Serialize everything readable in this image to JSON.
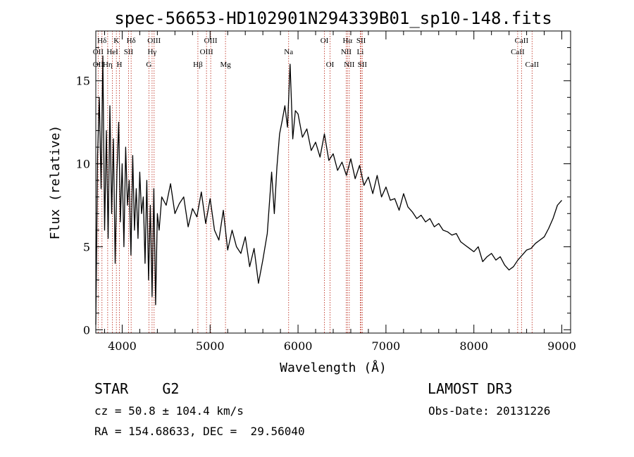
{
  "chart_data": {
    "type": "line",
    "title": "spec-56653-HD102901N294339B01_sp10-148.fits",
    "xlabel": "Wavelength (Å)",
    "ylabel": "Flux (relative)",
    "xlim": [
      3700,
      9100
    ],
    "ylim": [
      -0.2,
      18.0
    ],
    "x_ticks": [
      4000,
      5000,
      6000,
      7000,
      8000,
      9000
    ],
    "y_ticks": [
      0,
      5,
      10,
      15
    ],
    "series": [
      {
        "name": "spectrum",
        "x": [
          3700,
          3720,
          3740,
          3760,
          3780,
          3800,
          3820,
          3840,
          3860,
          3880,
          3900,
          3920,
          3940,
          3960,
          3980,
          4000,
          4020,
          4040,
          4060,
          4080,
          4100,
          4120,
          4140,
          4160,
          4180,
          4200,
          4220,
          4240,
          4260,
          4280,
          4300,
          4320,
          4340,
          4360,
          4380,
          4400,
          4420,
          4450,
          4500,
          4550,
          4600,
          4650,
          4700,
          4750,
          4800,
          4850,
          4900,
          4950,
          5000,
          5050,
          5100,
          5150,
          5200,
          5250,
          5300,
          5350,
          5400,
          5450,
          5500,
          5550,
          5600,
          5650,
          5700,
          5730,
          5760,
          5790,
          5820,
          5850,
          5880,
          5910,
          5940,
          5970,
          6000,
          6050,
          6100,
          6150,
          6200,
          6250,
          6300,
          6350,
          6400,
          6450,
          6500,
          6550,
          6600,
          6650,
          6700,
          6750,
          6800,
          6850,
          6900,
          6950,
          7000,
          7050,
          7100,
          7150,
          7200,
          7250,
          7300,
          7350,
          7400,
          7450,
          7500,
          7550,
          7600,
          7650,
          7700,
          7750,
          7800,
          7850,
          7900,
          7950,
          8000,
          8050,
          8100,
          8150,
          8200,
          8250,
          8300,
          8350,
          8400,
          8450,
          8500,
          8550,
          8600,
          8650,
          8700,
          8750,
          8800,
          8850,
          8900,
          8950,
          9000
        ],
        "y": [
          0.3,
          10.5,
          14.0,
          8.5,
          16.5,
          6.0,
          12.0,
          5.5,
          13.5,
          7.0,
          11.5,
          4.0,
          9.5,
          12.5,
          6.5,
          10.0,
          5.0,
          11.0,
          7.5,
          9.0,
          4.5,
          10.5,
          6.0,
          8.5,
          5.5,
          9.5,
          7.0,
          8.0,
          4.0,
          9.0,
          3.0,
          7.5,
          2.0,
          8.5,
          1.5,
          7.0,
          6.0,
          8.0,
          7.5,
          8.8,
          7.0,
          7.6,
          8.0,
          6.2,
          7.3,
          6.8,
          8.3,
          6.4,
          7.9,
          6.0,
          5.4,
          7.2,
          4.8,
          6.0,
          5.0,
          4.6,
          5.6,
          3.8,
          4.9,
          2.8,
          4.2,
          5.8,
          9.5,
          7.0,
          9.8,
          11.8,
          12.6,
          13.5,
          12.2,
          16.0,
          11.5,
          13.2,
          13.0,
          11.6,
          12.1,
          10.8,
          11.3,
          10.4,
          11.8,
          10.2,
          10.6,
          9.6,
          10.1,
          9.3,
          10.3,
          9.1,
          9.9,
          8.7,
          9.2,
          8.2,
          9.3,
          8.0,
          8.6,
          7.8,
          7.9,
          7.2,
          8.2,
          7.4,
          7.1,
          6.7,
          6.9,
          6.5,
          6.7,
          6.2,
          6.4,
          6.0,
          5.9,
          5.7,
          5.8,
          5.3,
          5.1,
          4.9,
          4.7,
          5.0,
          4.1,
          4.4,
          4.6,
          4.2,
          4.4,
          3.9,
          3.6,
          3.8,
          4.2,
          4.5,
          4.8,
          4.9,
          5.2,
          5.4,
          5.6,
          6.1,
          6.7,
          7.5,
          7.8
        ]
      }
    ],
    "spectral_lines": [
      {
        "label": "Hδ",
        "wavelength": 3770,
        "row": 1
      },
      {
        "label": "K",
        "wavelength": 3934,
        "row": 1
      },
      {
        "label": "Hδ",
        "wavelength": 4102,
        "row": 1
      },
      {
        "label": "OIII",
        "wavelength": 4363,
        "row": 1
      },
      {
        "label": "OIII",
        "wavelength": 5007,
        "row": 1
      },
      {
        "label": "OI",
        "wavelength": 6300,
        "row": 1
      },
      {
        "label": "Hα",
        "wavelength": 6563,
        "row": 1
      },
      {
        "label": "SII",
        "wavelength": 6717,
        "row": 1
      },
      {
        "label": "CaII",
        "wavelength": 8542,
        "row": 1
      },
      {
        "label": "OII",
        "wavelength": 3727,
        "row": 2
      },
      {
        "label": "HeI",
        "wavelength": 3889,
        "row": 2
      },
      {
        "label": "SII",
        "wavelength": 4072,
        "row": 2
      },
      {
        "label": "Hγ",
        "wavelength": 4340,
        "row": 2
      },
      {
        "label": "OIII",
        "wavelength": 4959,
        "row": 2
      },
      {
        "label": "Na",
        "wavelength": 5893,
        "row": 2
      },
      {
        "label": "NII",
        "wavelength": 6548,
        "row": 2
      },
      {
        "label": "Li",
        "wavelength": 6708,
        "row": 2
      },
      {
        "label": "CaII",
        "wavelength": 8498,
        "row": 2
      },
      {
        "label": "OII",
        "wavelength": 3727,
        "row": 3
      },
      {
        "label": "Hη",
        "wavelength": 3835,
        "row": 3
      },
      {
        "label": "H",
        "wavelength": 3968,
        "row": 3
      },
      {
        "label": "G",
        "wavelength": 4304,
        "row": 3
      },
      {
        "label": "Hβ",
        "wavelength": 4861,
        "row": 3
      },
      {
        "label": "Mg",
        "wavelength": 5175,
        "row": 3
      },
      {
        "label": "OI",
        "wavelength": 6364,
        "row": 3
      },
      {
        "label": "NII",
        "wavelength": 6583,
        "row": 3
      },
      {
        "label": "SII",
        "wavelength": 6731,
        "row": 3
      },
      {
        "label": "CaII",
        "wavelength": 8662,
        "row": 3
      }
    ]
  },
  "info": {
    "star_class": "STAR    G2",
    "survey": "LAMOST DR3",
    "redshift": "cz = 50.8 ± 104.4 km/s",
    "obs_date": "Obs-Date: 20131226",
    "coords": "RA = 154.68633, DEC =  29.56040"
  }
}
